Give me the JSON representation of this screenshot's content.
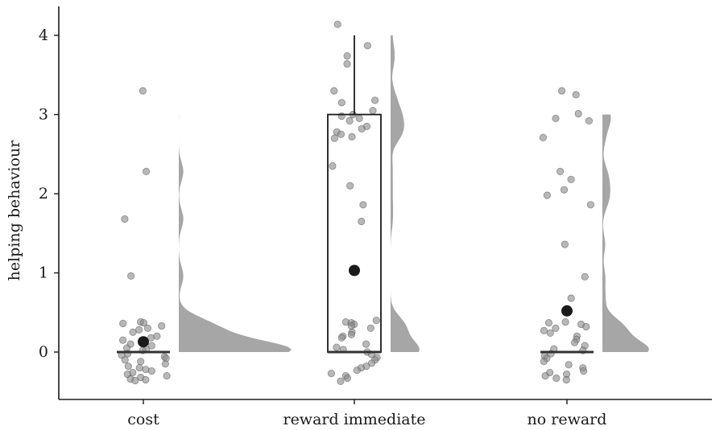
{
  "chart_data": {
    "type": "raincloud",
    "xlabel": "",
    "ylabel": "helping behaviour",
    "ylim": [
      -0.6,
      4.35
    ],
    "yticks": [
      0,
      1,
      2,
      3,
      4
    ],
    "grid": false,
    "colors": {
      "point": "#8c8c8c",
      "mean": "#1a1a1a",
      "density": "#a6a6a7",
      "box": "#1a1a1a"
    },
    "categories": [
      "cost",
      "reward immediate",
      "no reward"
    ],
    "groups": [
      {
        "name": "cost",
        "mean": 0.13,
        "box": {
          "q1": 0,
          "median": 0,
          "q3": 0,
          "whisker_low": 0,
          "whisker_high": 0
        },
        "points": [
          3.3,
          2.28,
          1.68,
          0.96,
          0.38,
          0.37,
          0.36,
          0.33,
          0.3,
          0.28,
          0.25,
          0.2,
          0.18,
          0.15,
          0.12,
          0.1,
          0.08,
          0.05,
          0.03,
          0.02,
          -0.02,
          -0.04,
          -0.06,
          -0.08,
          -0.1,
          -0.12,
          -0.15,
          -0.18,
          -0.2,
          -0.22,
          -0.24,
          -0.26,
          -0.28,
          -0.3,
          -0.32,
          -0.34,
          -0.35,
          -0.36
        ],
        "density_max": 3.0
      },
      {
        "name": "reward immediate",
        "mean": 1.03,
        "box": {
          "q1": 0,
          "median": 0,
          "q3": 3.0,
          "whisker_low": 0,
          "whisker_high": 4.0
        },
        "points": [
          4.14,
          3.87,
          3.74,
          3.64,
          3.3,
          3.18,
          3.15,
          3.05,
          3.0,
          2.98,
          2.95,
          2.92,
          2.85,
          2.82,
          2.78,
          2.75,
          2.72,
          2.7,
          2.35,
          2.1,
          1.86,
          1.65,
          0.4,
          0.38,
          0.37,
          0.35,
          0.33,
          0.3,
          0.25,
          0.22,
          0.2,
          0.18,
          0.1,
          0.06,
          0.03,
          0.0,
          -0.03,
          -0.07,
          -0.1,
          -0.14,
          -0.18,
          -0.2,
          -0.23,
          -0.27,
          -0.3,
          -0.33,
          -0.37
        ],
        "density_max": 4.0
      },
      {
        "name": "no reward",
        "mean": 0.52,
        "box": {
          "q1": 0,
          "median": 0,
          "q3": 0,
          "whisker_low": 0,
          "whisker_high": 0
        },
        "points": [
          3.3,
          3.25,
          3.01,
          2.95,
          2.92,
          2.71,
          2.28,
          2.18,
          2.05,
          1.98,
          1.86,
          1.36,
          0.95,
          0.68,
          0.38,
          0.37,
          0.35,
          0.32,
          0.3,
          0.27,
          0.24,
          0.2,
          0.16,
          0.12,
          0.08,
          0.04,
          0.02,
          -0.02,
          -0.05,
          -0.08,
          -0.12,
          -0.16,
          -0.2,
          -0.24,
          -0.26,
          -0.28,
          -0.3,
          -0.33,
          -0.35
        ],
        "density_max": 3.0
      }
    ]
  }
}
